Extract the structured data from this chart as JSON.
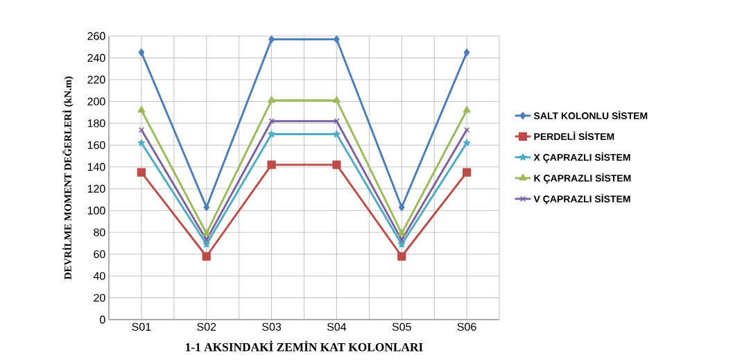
{
  "chart_data": {
    "type": "line",
    "xlabel": "1-1 AKSINDAKİ ZEMİN KAT KOLONLARI",
    "ylabel": "DEVRİLME MOMENT DEĞERLERİ (kN.m)",
    "categories": [
      "S01",
      "S02",
      "S03",
      "S04",
      "S05",
      "S06"
    ],
    "series": [
      {
        "name": "SALT KOLONLU SİSTEM",
        "color": "#4a7ebb",
        "marker": "diamond",
        "values": [
          245,
          103,
          257,
          257,
          103,
          245
        ]
      },
      {
        "name": "PERDELİ SİSTEM",
        "color": "#be4b48",
        "marker": "square",
        "values": [
          135,
          58,
          142,
          142,
          58,
          135
        ]
      },
      {
        "name": "X ÇAPRAZLI SİSTEM",
        "color": "#4bacc6",
        "marker": "star",
        "values": [
          162,
          69,
          170,
          170,
          69,
          162
        ]
      },
      {
        "name": "K ÇAPRAZLI SİSTEM",
        "color": "#9bbb59",
        "marker": "triangle",
        "values": [
          192,
          79,
          201,
          201,
          79,
          192
        ]
      },
      {
        "name": "V ÇAPRAZLI SİSTEM",
        "color": "#7d60a0",
        "marker": "cross",
        "values": [
          174,
          73,
          182,
          182,
          73,
          174
        ]
      }
    ],
    "ylim": [
      0,
      260
    ],
    "yticks": [
      0,
      20,
      40,
      60,
      80,
      100,
      120,
      140,
      160,
      180,
      200,
      220,
      240,
      260
    ],
    "grid": true,
    "legend": "right"
  }
}
